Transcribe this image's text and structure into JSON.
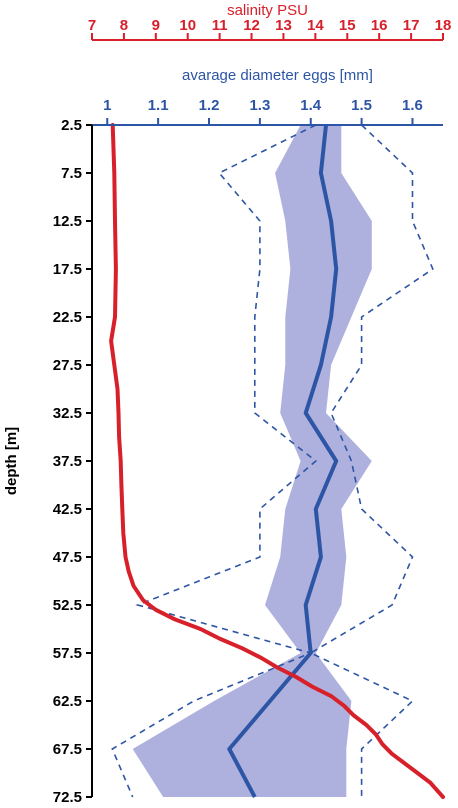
{
  "chart_data": {
    "type": "line",
    "ylabel": "depth [m]",
    "y_axis": {
      "range": [
        2.5,
        72.5
      ],
      "inverted": true,
      "ticks": [
        "2.5",
        "7.5",
        "12.5",
        "17.5",
        "22.5",
        "27.5",
        "32.5",
        "37.5",
        "42.5",
        "47.5",
        "52.5",
        "57.5",
        "62.5",
        "67.5",
        "72.5"
      ]
    },
    "top_axis": {
      "label": "salinity PSU",
      "color": "#d7202a",
      "range": [
        7,
        18
      ],
      "ticks": [
        "7",
        "8",
        "9",
        "10",
        "11",
        "12",
        "13",
        "14",
        "15",
        "16",
        "17",
        "18"
      ]
    },
    "bottom_axis": {
      "label": "avarage diameter eggs [mm]",
      "color": "#2d55a5",
      "range": [
        0.97,
        1.66
      ],
      "ticks": [
        "1",
        "1.1",
        "1.2",
        "1.3",
        "1.4",
        "1.5",
        "1.6"
      ]
    },
    "grid": false,
    "colors": {
      "salinity": "#d7202a",
      "diameter": "#2d55a5",
      "band": "#aeb0dd"
    },
    "salinity": {
      "depth": [
        2.5,
        7.5,
        12.5,
        17.5,
        22.5,
        25,
        27.5,
        30,
        32.5,
        35,
        37.5,
        40,
        42.5,
        45,
        47.5,
        49,
        50.5,
        52,
        53,
        54,
        55,
        56,
        57,
        58,
        59,
        60,
        61,
        62,
        63,
        64,
        65,
        66,
        67,
        68,
        69,
        70,
        71,
        72.5
      ],
      "values": [
        7.65,
        7.7,
        7.72,
        7.75,
        7.72,
        7.6,
        7.7,
        7.8,
        7.83,
        7.85,
        7.9,
        7.92,
        7.95,
        7.98,
        8.05,
        8.15,
        8.3,
        8.6,
        9.0,
        9.6,
        10.4,
        11.0,
        11.7,
        12.3,
        12.8,
        13.4,
        13.9,
        14.5,
        14.9,
        15.2,
        15.6,
        15.9,
        16.1,
        16.4,
        16.8,
        17.2,
        17.6,
        18.0
      ]
    },
    "diameter": {
      "depth": [
        2.5,
        7.5,
        12.5,
        17.5,
        22.5,
        27.5,
        32.5,
        37.5,
        42.5,
        47.5,
        52.5,
        57.5,
        62.5,
        67.5,
        72.5
      ],
      "mean": [
        1.43,
        1.42,
        1.44,
        1.45,
        1.44,
        1.42,
        1.39,
        1.45,
        1.41,
        1.42,
        1.39,
        1.4,
        1.32,
        1.24,
        1.29
      ],
      "band_low": [
        1.38,
        1.33,
        1.35,
        1.36,
        1.35,
        1.35,
        1.34,
        1.38,
        1.35,
        1.34,
        1.31,
        1.38,
        1.21,
        1.05,
        1.11
      ],
      "band_high": [
        1.46,
        1.46,
        1.52,
        1.52,
        1.48,
        1.44,
        1.43,
        1.52,
        1.46,
        1.47,
        1.46,
        1.41,
        1.48,
        1.47,
        1.47
      ],
      "min": [
        1.41,
        1.22,
        1.3,
        1.3,
        1.29,
        1.29,
        1.29,
        1.41,
        1.3,
        1.3,
        1.06,
        1.4,
        1.17,
        1.01,
        1.05
      ],
      "max": [
        1.5,
        1.6,
        1.6,
        1.64,
        1.5,
        1.5,
        1.44,
        1.48,
        1.5,
        1.6,
        1.56,
        1.4,
        1.6,
        1.5,
        1.5
      ]
    }
  }
}
